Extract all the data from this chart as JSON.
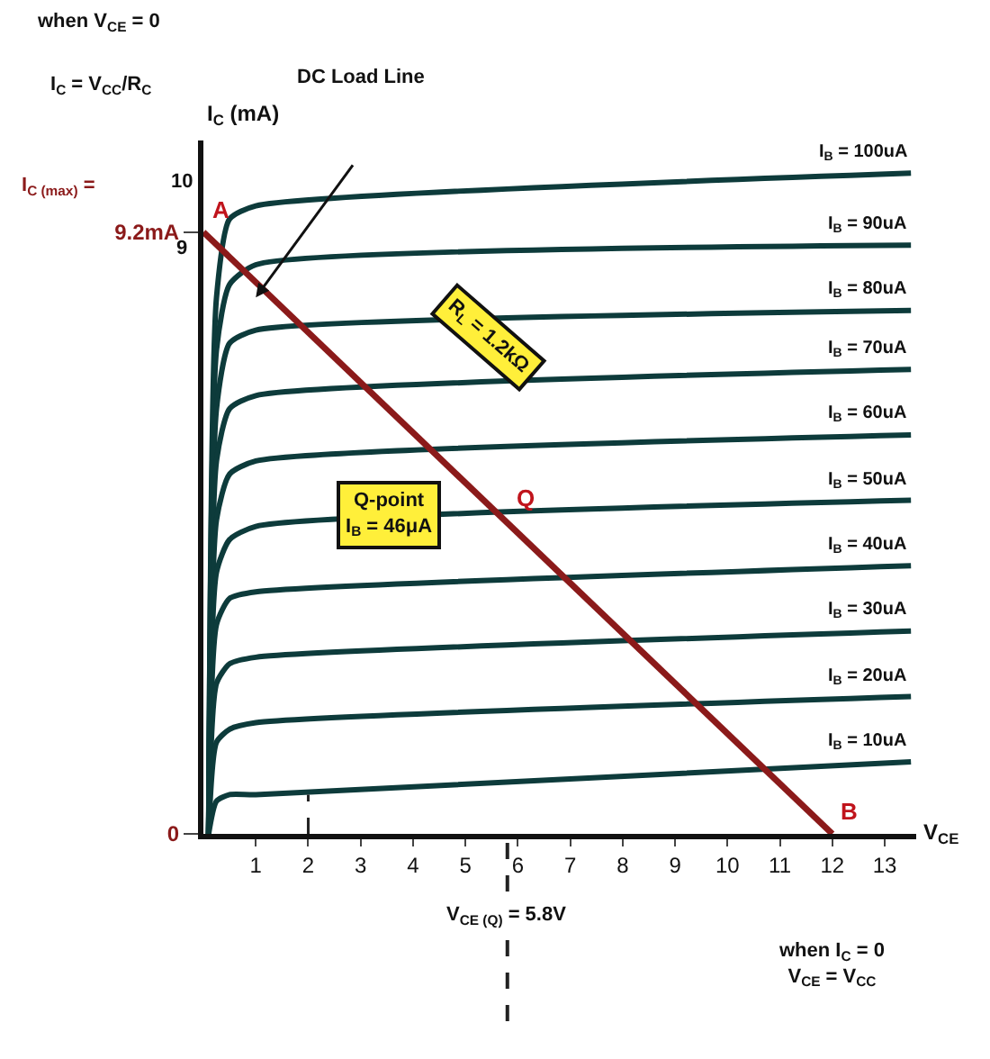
{
  "chart_data": {
    "type": "line",
    "xlabel": "V$_{CE}$",
    "ylabel": "I$_{C}$ (mA)",
    "x": [
      0.1,
      0.25,
      0.5,
      1,
      13.5
    ],
    "series": [
      {
        "name": "I$_{B}$ = 100uA",
        "color": "#0d3b3b",
        "values": [
          0,
          8.2,
          9.4,
          9.6,
          10.1
        ]
      },
      {
        "name": "I$_{B}$ = 90uA",
        "color": "#0d3b3b",
        "values": [
          0,
          7.4,
          8.4,
          8.7,
          9.0
        ]
      },
      {
        "name": "I$_{B}$ = 80uA",
        "color": "#0d3b3b",
        "values": [
          0,
          6.5,
          7.5,
          7.7,
          8.0
        ]
      },
      {
        "name": "I$_{B}$ = 70uA",
        "color": "#0d3b3b",
        "values": [
          0,
          5.7,
          6.5,
          6.7,
          7.1
        ]
      },
      {
        "name": "I$_{B}$ = 60uA",
        "color": "#0d3b3b",
        "values": [
          0,
          4.8,
          5.5,
          5.7,
          6.1
        ]
      },
      {
        "name": "I$_{B}$ = 50uA",
        "color": "#0d3b3b",
        "values": [
          0,
          4.0,
          4.5,
          4.7,
          5.1
        ]
      },
      {
        "name": "I$_{B}$ = 40uA",
        "color": "#0d3b3b",
        "values": [
          0,
          3.2,
          3.6,
          3.7,
          4.1
        ]
      },
      {
        "name": "I$_{B}$ = 30uA",
        "color": "#0d3b3b",
        "values": [
          0,
          2.3,
          2.6,
          2.7,
          3.1
        ]
      },
      {
        "name": "I$_{B}$ = 20uA",
        "color": "#0d3b3b",
        "values": [
          0,
          1.4,
          1.6,
          1.7,
          2.1
        ]
      },
      {
        "name": "I$_{B}$ = 10uA",
        "color": "#0d3b3b",
        "values": [
          0,
          0.5,
          0.6,
          0.6,
          1.1
        ]
      },
      {
        "color": "#8b1a1a",
        "x": [
          0,
          12
        ],
        "values": [
          9.2,
          0
        ]
      },
      {
        "color": "#222222",
        "x": [
          2,
          2
        ],
        "values": [
          0,
          0.6
        ],
        "line_style": "dashed"
      }
    ],
    "xlim": [
      0,
      13.6
    ],
    "xticks": [
      1,
      2,
      3,
      4,
      5,
      6,
      7,
      8,
      9,
      10,
      11,
      12,
      13
    ],
    "ylim": [
      0,
      10.6
    ],
    "yticks": [
      0,
      {
        "value": 9.2,
        "label": "9.2mA"
      }
    ],
    "ref_lines": [
      {
        "axis": "x",
        "value": 5.8,
        "label": "V$_{CE (Q)}$ = 5.8V",
        "color": "#222222",
        "line_style": "dashed"
      }
    ],
    "annotations": [
      "when V$_{CE}$ = 0",
      "I$_{C}$ = V$_{CC}$/R$_{C}$",
      "DC Load Line",
      "I$_{C (max)}$ =",
      "10",
      "9",
      "R$_{L}$ = 1.2kΩ",
      "Q-point\nI$_{B}$ = 46μA",
      "when I$_{C}$ = 0\nV$_{CE}$ = V$_{CC}$",
      {
        "text": "A",
        "x": 0,
        "y": 9.2
      },
      {
        "text": "B",
        "x": 12,
        "y": 0
      },
      {
        "text": "Q",
        "x": 5.8,
        "y": 4.8
      }
    ],
    "legend": false,
    "marker": "none"
  }
}
